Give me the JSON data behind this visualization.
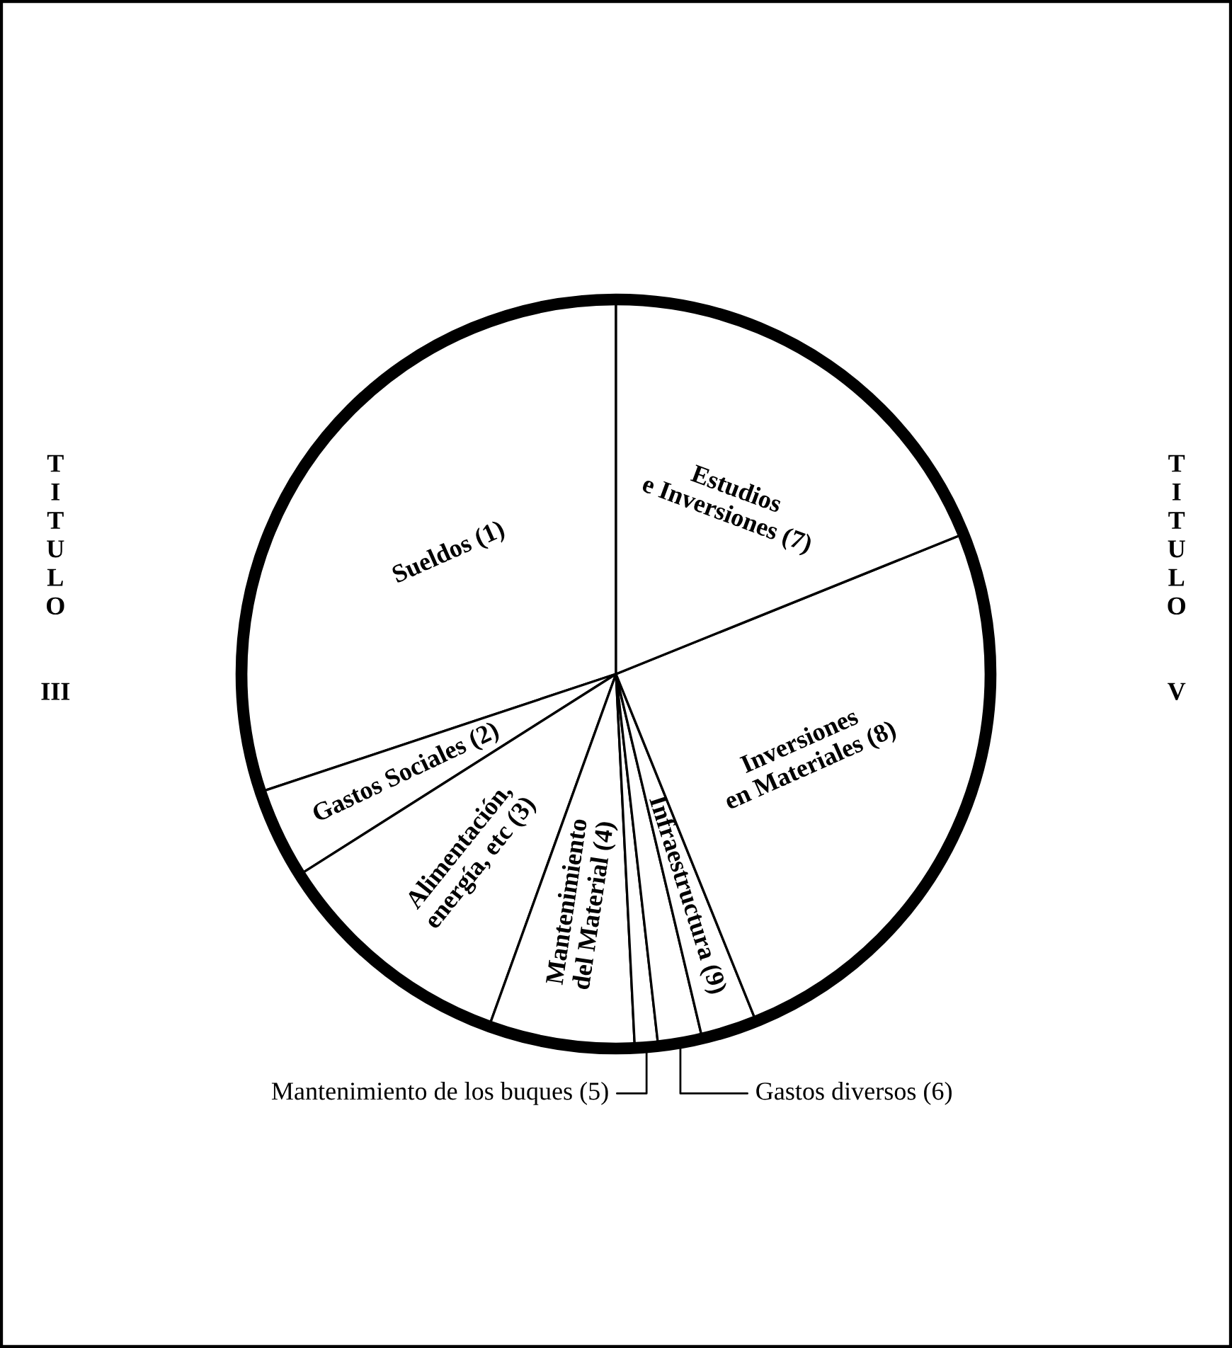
{
  "chart_data": {
    "type": "pie",
    "categories": [
      "Sueldos (1)",
      "Gastos Sociales (2)",
      "Alimentación,\nenergía, etc (3)",
      "Mantenimiento\ndel Material (4)",
      "Mantenimiento de los buques (5)",
      "Gastos diversos (6)",
      "Infraestructura (9)",
      "Inversiones\nen Materiales (8)",
      "Estudios\ne Inversiones (7)"
    ],
    "values": [
      30.1,
      3.9,
      10.5,
      6.3,
      1.0,
      1.9,
      2.4,
      25.0,
      18.9
    ],
    "colors": [
      "#ffffff",
      "#ffffff",
      "#ffffff",
      "#ffffff",
      "#ffffff",
      "#ffffff",
      "#ffffff",
      "#ffffff",
      "#ffffff"
    ],
    "annotations": [
      "TITULO III",
      "TITULO V"
    ]
  }
}
